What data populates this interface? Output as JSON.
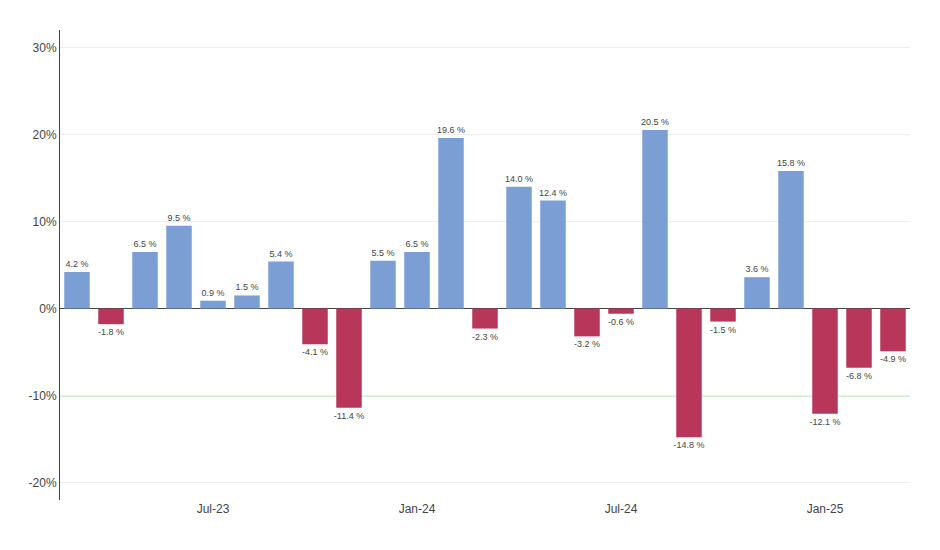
{
  "chart_data": {
    "type": "bar",
    "categories": [
      null,
      null,
      null,
      null,
      "Jul-23",
      null,
      null,
      null,
      null,
      null,
      "Jan-24",
      null,
      null,
      null,
      null,
      null,
      "Jul-24",
      null,
      null,
      null,
      null,
      null,
      "Jan-25",
      null,
      null
    ],
    "values": [
      4.2,
      -1.8,
      6.5,
      9.5,
      0.9,
      1.5,
      5.4,
      -4.1,
      -11.4,
      5.5,
      6.5,
      19.6,
      -2.3,
      14.0,
      12.4,
      -3.2,
      -0.6,
      20.5,
      -14.8,
      -1.5,
      3.6,
      15.8,
      -12.1,
      -6.8,
      -4.9
    ],
    "value_labels": [
      "4.2 %",
      "-1.8 %",
      "6.5 %",
      "9.5 %",
      "0.9 %",
      "1.5 %",
      "5.4 %",
      "-4.1 %",
      "-11.4 %",
      "5.5 %",
      "6.5 %",
      "19.6 %",
      "-2.3 %",
      "14.0 %",
      "12.4 %",
      "-3.2 %",
      "-0.6 %",
      "20.5 %",
      "-14.8 %",
      "-1.5 %",
      "3.6 %",
      "15.8 %",
      "-12.1 %",
      "-6.8 %",
      "-4.9 %"
    ],
    "colors": [
      "#7b9fd4",
      "#b8365a",
      "#7b9fd4",
      "#7b9fd4",
      "#7b9fd4",
      "#7b9fd4",
      "#7b9fd4",
      "#b8365a",
      "#b8365a",
      "#7b9fd4",
      "#7b9fd4",
      "#7b9fd4",
      "#b8365a",
      "#7b9fd4",
      "#7b9fd4",
      "#b8365a",
      "#b8365a",
      "#7b9fd4",
      "#b8365a",
      "#b8365a",
      "#7b9fd4",
      "#7b9fd4",
      "#b8365a",
      "#b8365a",
      "#b8365a"
    ],
    "data_labels": true,
    "reference_lines": [
      {
        "value": -10,
        "color": "#4caf50"
      },
      {
        "value": 10,
        "color": "#4caf50"
      }
    ],
    "ylim": [
      -22,
      32
    ],
    "yticks": [
      {
        "value": -20,
        "label": "-20%"
      },
      {
        "value": -10,
        "label": "-10%"
      },
      {
        "value": 0,
        "label": "0%"
      },
      {
        "value": 10,
        "label": "10%"
      },
      {
        "value": 20,
        "label": "20%"
      },
      {
        "value": 30,
        "label": "30%"
      }
    ],
    "grid": true
  }
}
